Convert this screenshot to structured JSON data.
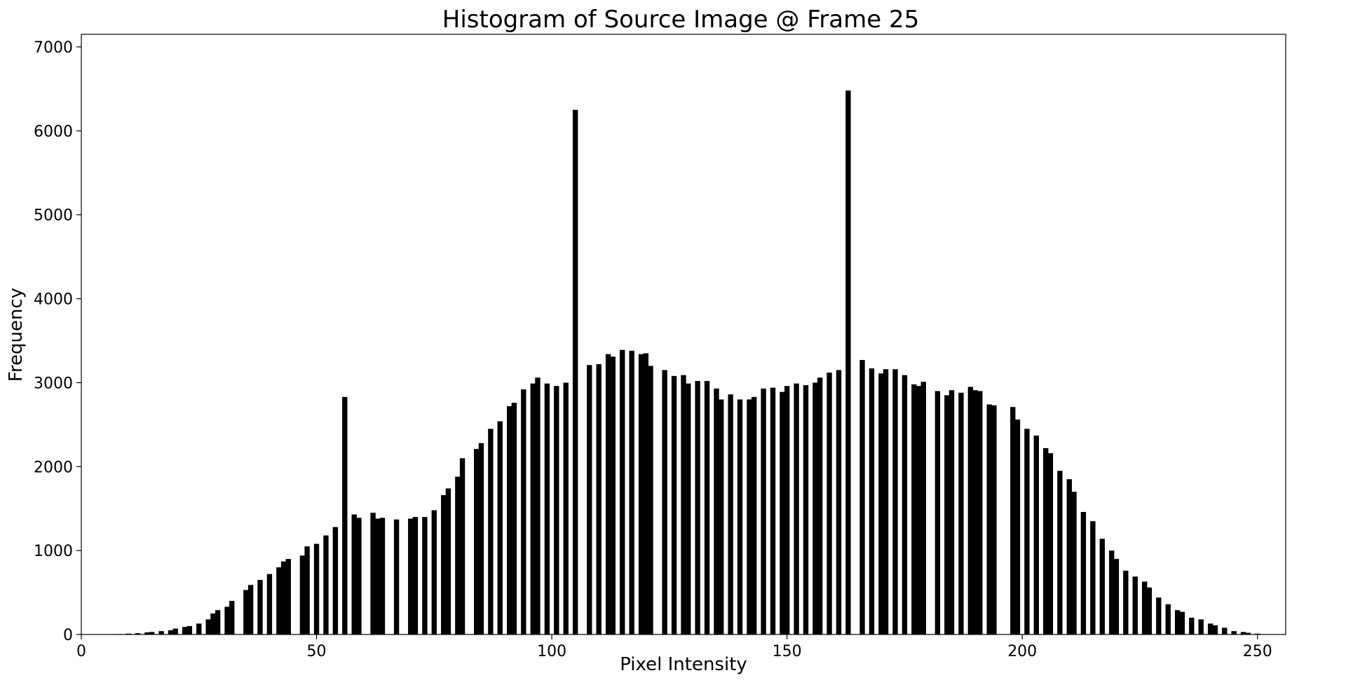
{
  "chart_data": {
    "type": "bar",
    "title": "Histogram of Source Image @ Frame 25",
    "xlabel": "Pixel Intensity",
    "ylabel": "Frequency",
    "xlim": [
      0,
      256
    ],
    "ylim": [
      0,
      7150
    ],
    "xticks": [
      0,
      50,
      100,
      150,
      200,
      250
    ],
    "yticks": [
      0,
      1000,
      2000,
      3000,
      4000,
      5000,
      6000,
      7000
    ],
    "grid": false,
    "bar_color": "#000000",
    "x": [
      8,
      10,
      12,
      14,
      15,
      17,
      19,
      20,
      22,
      23,
      25,
      27,
      28,
      29,
      31,
      32,
      35,
      36,
      38,
      40,
      42,
      43,
      44,
      47,
      48,
      50,
      52,
      54,
      56,
      58,
      59,
      62,
      63,
      64,
      67,
      70,
      71,
      73,
      75,
      77,
      78,
      80,
      81,
      84,
      85,
      87,
      89,
      91,
      92,
      94,
      96,
      97,
      99,
      101,
      103,
      105,
      108,
      110,
      112,
      113,
      115,
      117,
      119,
      120,
      121,
      124,
      126,
      128,
      129,
      131,
      133,
      135,
      136,
      138,
      140,
      142,
      143,
      145,
      147,
      149,
      150,
      152,
      154,
      156,
      157,
      159,
      161,
      163,
      166,
      168,
      170,
      171,
      173,
      175,
      177,
      178,
      179,
      182,
      184,
      185,
      187,
      189,
      190,
      191,
      193,
      194,
      198,
      199,
      201,
      203,
      205,
      206,
      208,
      210,
      211,
      213,
      215,
      217,
      219,
      220,
      222,
      224,
      226,
      227,
      229,
      231,
      233,
      234,
      236,
      238,
      240,
      241,
      243,
      245,
      247,
      248,
      250
    ],
    "values": [
      5,
      10,
      15,
      25,
      30,
      40,
      50,
      70,
      90,
      100,
      130,
      180,
      250,
      290,
      330,
      400,
      530,
      590,
      650,
      720,
      800,
      870,
      900,
      940,
      1050,
      1080,
      1180,
      1280,
      2830,
      1430,
      1390,
      1450,
      1380,
      1390,
      1370,
      1380,
      1400,
      1400,
      1480,
      1660,
      1740,
      1880,
      2100,
      2210,
      2280,
      2450,
      2540,
      2720,
      2760,
      2920,
      2990,
      3060,
      2990,
      2960,
      3000,
      6250,
      3210,
      3220,
      3340,
      3310,
      3390,
      3380,
      3340,
      3350,
      3200,
      3150,
      3080,
      3090,
      2990,
      3020,
      3020,
      2930,
      2800,
      2860,
      2800,
      2800,
      2830,
      2930,
      2940,
      2890,
      2960,
      2990,
      2970,
      3000,
      3060,
      3120,
      3150,
      6480,
      3270,
      3170,
      3110,
      3160,
      3160,
      3090,
      2980,
      2960,
      3010,
      2900,
      2850,
      2910,
      2880,
      2950,
      2910,
      2900,
      2740,
      2730,
      2710,
      2560,
      2450,
      2370,
      2220,
      2160,
      1950,
      1850,
      1700,
      1460,
      1350,
      1140,
      1000,
      900,
      760,
      690,
      630,
      560,
      440,
      360,
      290,
      270,
      200,
      180,
      130,
      110,
      80,
      40,
      30,
      20,
      10
    ]
  }
}
